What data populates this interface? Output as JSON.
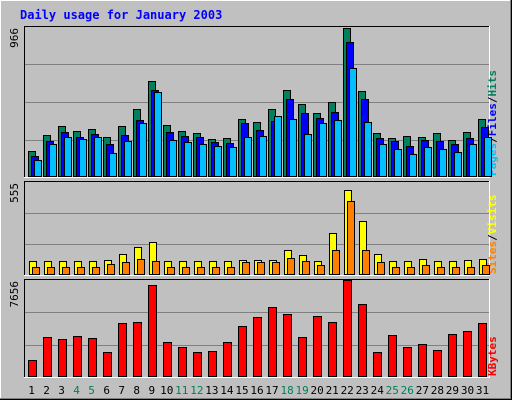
{
  "title": "Daily usage for January 2003",
  "colors": {
    "hits": "#00805c",
    "files": "#0000ff",
    "pages": "#00c0ff",
    "visits": "#ffff00",
    "sites": "#ff8000",
    "kbytes": "#ff0000",
    "title": "#0000ff",
    "weekend": "#00805c",
    "weekday": "#000000",
    "background": "#c0c0c0"
  },
  "chart_data": {
    "type": "bar",
    "title": "Daily usage for January 2003",
    "categories": [
      "1",
      "2",
      "3",
      "4",
      "5",
      "6",
      "7",
      "8",
      "9",
      "10",
      "11",
      "12",
      "13",
      "14",
      "15",
      "16",
      "17",
      "18",
      "19",
      "20",
      "21",
      "22",
      "23",
      "24",
      "25",
      "26",
      "27",
      "28",
      "29",
      "30",
      "31"
    ],
    "weekend_days": [
      "4",
      "5",
      "11",
      "12",
      "18",
      "19",
      "25",
      "26"
    ],
    "panels": [
      {
        "id": "hits-files-pages",
        "ymax_label": "966",
        "ymax": 966,
        "legend": [
          "Pages",
          "/",
          "Files",
          "/",
          "Hits"
        ],
        "series": [
          {
            "name": "Hits",
            "values": [
              165,
              268,
              330,
              298,
              312,
              255,
              330,
              439,
              616,
              336,
              298,
              284,
              246,
              251,
              376,
              355,
              439,
              562,
              470,
              411,
              483,
              962,
              551,
              284,
              249,
              261,
              255,
              281,
              239,
              291,
              371
            ]
          },
          {
            "name": "Files",
            "values": [
              133,
              235,
              290,
              260,
              280,
              210,
              270,
              370,
              560,
              290,
              265,
              255,
              225,
              220,
              350,
              300,
              360,
              500,
              415,
              380,
              420,
              870,
              500,
              250,
              230,
              200,
              240,
              230,
              210,
              250,
              320
            ]
          },
          {
            "name": "Pages",
            "values": [
              110,
              215,
              255,
              246,
              260,
              154,
              230,
              345,
              550,
              240,
              225,
              215,
              198,
              190,
              260,
              265,
              395,
              375,
              280,
              345,
              365,
              705,
              355,
              213,
              180,
              150,
              190,
              180,
              164,
              215,
              255
            ]
          }
        ]
      },
      {
        "id": "visits-sites",
        "ymax_label": "555",
        "ymax": 555,
        "legend": [
          "Sites",
          "/",
          "Visits"
        ],
        "series": [
          {
            "name": "Visits",
            "values": [
              82,
              82,
              82,
              82,
              82,
              88,
              125,
              170,
              195,
              82,
              82,
              82,
              82,
              82,
              90,
              90,
              90,
              150,
              120,
              82,
              250,
              505,
              320,
              125,
              82,
              82,
              95,
              82,
              82,
              90,
              95
            ]
          },
          {
            "name": "Sites",
            "values": [
              50,
              50,
              50,
              50,
              50,
              66,
              75,
              93,
              82,
              50,
              50,
              50,
              50,
              50,
              75,
              75,
              75,
              103,
              85,
              62,
              150,
              442,
              150,
              75,
              50,
              50,
              62,
              50,
              50,
              50,
              62
            ]
          }
        ]
      },
      {
        "id": "kbytes",
        "ymax_label": "7656",
        "ymax": 7656,
        "legend": [
          "KBytes"
        ],
        "series": [
          {
            "name": "KBytes",
            "values": [
              1360,
              3120,
              2980,
              3210,
              3060,
              2000,
              4280,
              4380,
              7270,
              2770,
              2330,
              1960,
              2020,
              2770,
              3990,
              4720,
              5520,
              5010,
              3180,
              4790,
              4380,
              7656,
              5780,
              1990,
              3280,
              2330,
              2640,
              2170,
              3370,
              3670,
              4280
            ]
          }
        ]
      }
    ]
  }
}
